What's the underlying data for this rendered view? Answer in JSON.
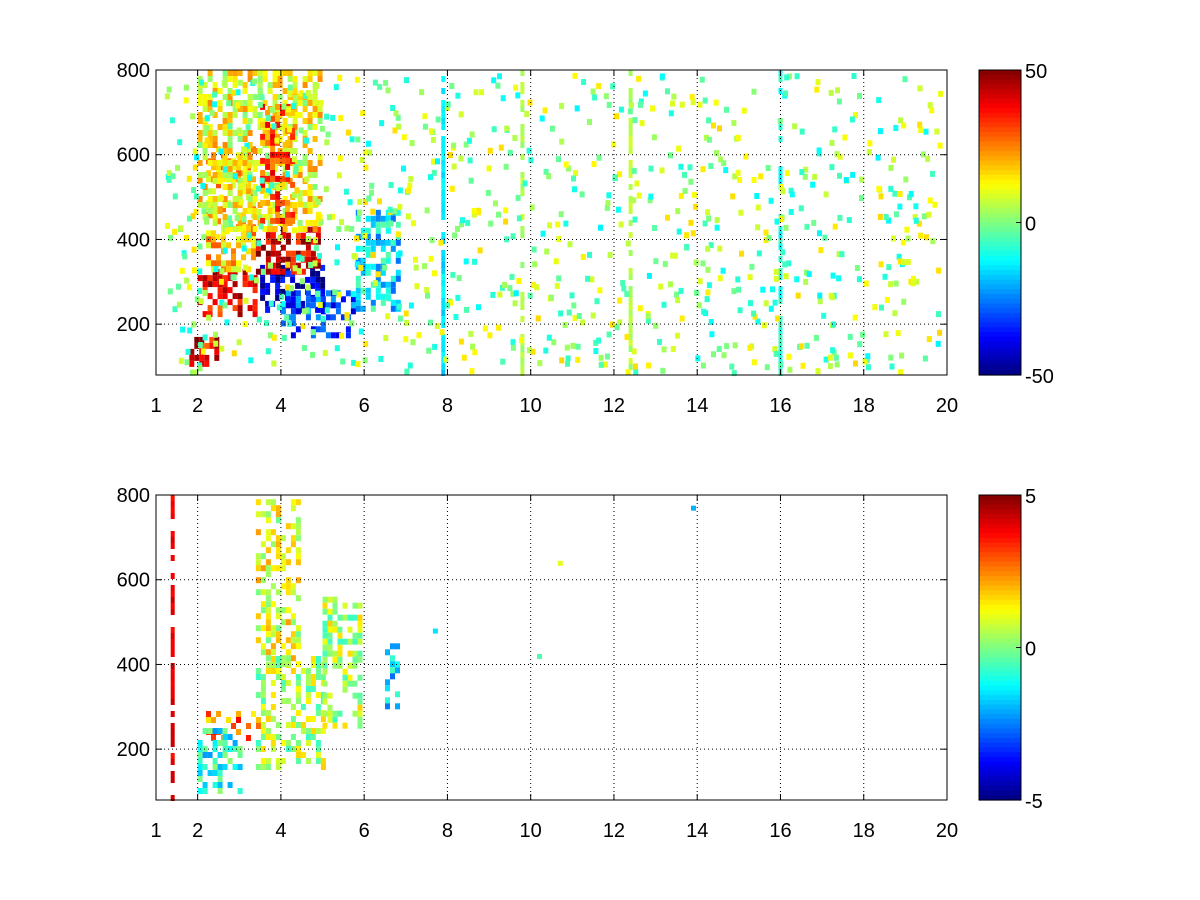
{
  "chart_data": [
    {
      "type": "heatmap",
      "x_ticks": [
        1,
        2,
        4,
        6,
        8,
        10,
        12,
        14,
        16,
        18,
        20
      ],
      "y_ticks": [
        200,
        400,
        600,
        800
      ],
      "xlim": [
        1,
        20
      ],
      "ylim": [
        80,
        800
      ],
      "grid": true,
      "colormap": "jet",
      "colorbar": {
        "ticks": [
          -50,
          0,
          50
        ],
        "range": [
          -50,
          50
        ]
      },
      "regions": [
        {
          "x": [
            2.0,
            3.4
          ],
          "y": [
            220,
            330
          ],
          "value": 38
        },
        {
          "x": [
            2.2,
            3.3
          ],
          "y": [
            330,
            620
          ],
          "value": 18
        },
        {
          "x": [
            1.8,
            2.5
          ],
          "y": [
            100,
            170
          ],
          "value": 40
        },
        {
          "x": [
            3.5,
            5.0
          ],
          "y": [
            240,
            340
          ],
          "value": -45
        },
        {
          "x": [
            3.4,
            4.9
          ],
          "y": [
            330,
            430
          ],
          "value": 42
        },
        {
          "x": [
            4.0,
            5.8
          ],
          "y": [
            180,
            280
          ],
          "value": -30
        },
        {
          "x": [
            5.8,
            6.8
          ],
          "y": [
            240,
            470
          ],
          "value": -15
        },
        {
          "x": [
            2.0,
            5.0
          ],
          "y": [
            430,
            800
          ],
          "value": 12
        },
        {
          "x": [
            3.5,
            4.3
          ],
          "y": [
            450,
            720
          ],
          "value": 28
        }
      ],
      "vertical_stripes": [
        {
          "x": 9.8,
          "value": 5
        },
        {
          "x": 12.4,
          "value": 5
        },
        {
          "x": 16.0,
          "value": -10
        },
        {
          "x": 7.9,
          "value": -15
        }
      ]
    },
    {
      "type": "heatmap",
      "x_ticks": [
        1,
        2,
        4,
        6,
        8,
        10,
        12,
        14,
        16,
        18,
        20
      ],
      "y_ticks": [
        200,
        400,
        600,
        800
      ],
      "xlim": [
        1,
        20
      ],
      "ylim": [
        80,
        800
      ],
      "grid": true,
      "colormap": "jet",
      "colorbar": {
        "ticks": [
          -5,
          0,
          5
        ],
        "range": [
          -5,
          5
        ]
      },
      "regions": [
        {
          "x": [
            2.2,
            3.5
          ],
          "y": [
            220,
            290
          ],
          "value": 2.5
        },
        {
          "x": [
            3.4,
            5.0
          ],
          "y": [
            160,
            420
          ],
          "value": 0.5
        },
        {
          "x": [
            2.0,
            3.0
          ],
          "y": [
            100,
            250
          ],
          "value": -1.0
        },
        {
          "x": [
            3.4,
            4.4
          ],
          "y": [
            400,
            790
          ],
          "value": 1.0
        },
        {
          "x": [
            5.0,
            5.9
          ],
          "y": [
            250,
            560
          ],
          "value": 0.5
        },
        {
          "x": [
            6.5,
            6.8
          ],
          "y": [
            300,
            450
          ],
          "value": -1.5
        }
      ],
      "isolated_points": [
        {
          "x": 13.9,
          "y": 770,
          "value": -2.0
        },
        {
          "x": 10.7,
          "y": 640,
          "value": 1.0
        },
        {
          "x": 10.2,
          "y": 420,
          "value": -0.5
        },
        {
          "x": 7.7,
          "y": 480,
          "value": -1.5
        }
      ],
      "vertical_stripes": [
        {
          "x": 1.4,
          "value": 4.0
        }
      ]
    }
  ]
}
